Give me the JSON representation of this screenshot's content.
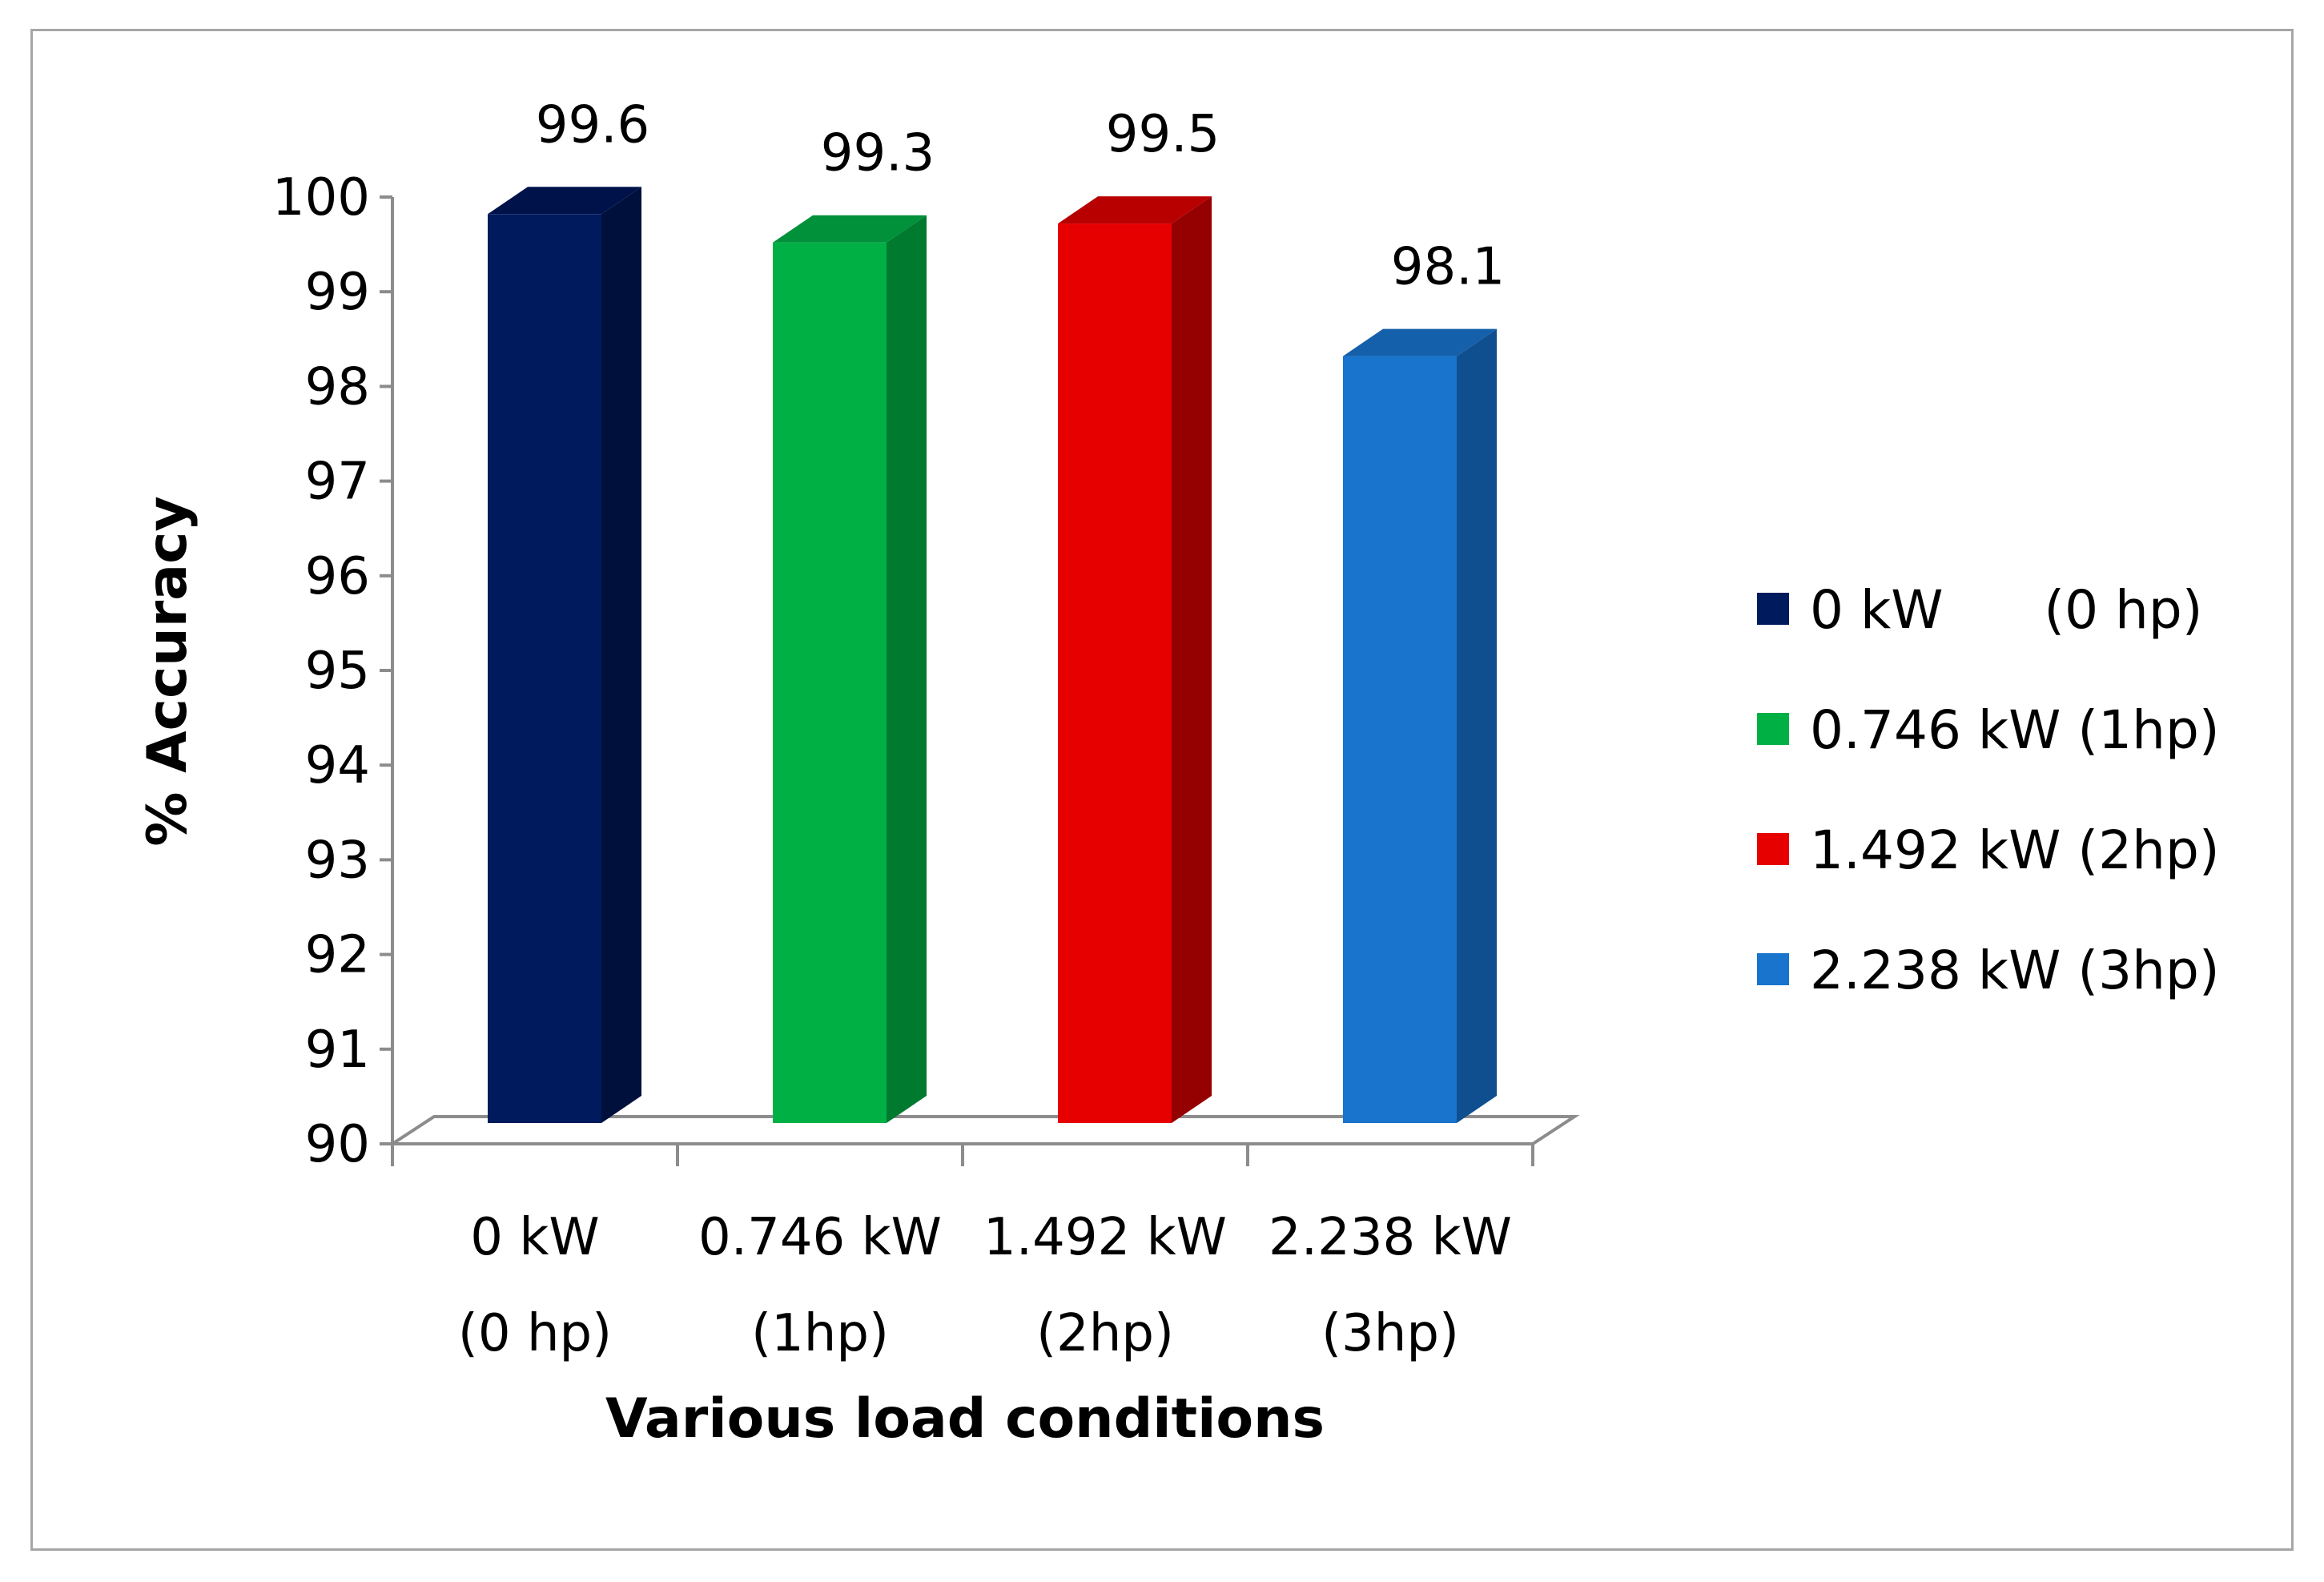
{
  "chart_data": {
    "type": "bar",
    "style": "3d-column",
    "categories": [
      [
        "0 kW",
        "(0 hp)"
      ],
      [
        "0.746 kW",
        "(1hp)"
      ],
      [
        "1.492 kW",
        "(2hp)"
      ],
      [
        "2.238 kW",
        "(3hp)"
      ]
    ],
    "values": [
      99.6,
      99.3,
      99.5,
      98.1
    ],
    "data_labels": [
      "99.6",
      "99.3",
      "99.5",
      "98.1"
    ],
    "colors": [
      "#001a5e",
      "#00b045",
      "#e60000",
      "#1874cd"
    ],
    "side_colors": [
      "#00103c",
      "#007a2e",
      "#950000",
      "#0f4f90"
    ],
    "top_colors": [
      "#00124a",
      "#00913a",
      "#b80000",
      "#1560aa"
    ],
    "xlabel": "Various load conditions",
    "ylabel": "% Accuracy",
    "ylim": [
      90,
      100
    ],
    "yticks": [
      "90",
      "91",
      "92",
      "93",
      "94",
      "95",
      "96",
      "97",
      "98",
      "99",
      "100"
    ],
    "grid": false,
    "legend": {
      "position": "right",
      "entries": [
        "0 kW      (0 hp)",
        "0.746 kW (1hp)",
        "1.492 kW (2hp)",
        "2.238 kW (3hp)"
      ]
    }
  }
}
